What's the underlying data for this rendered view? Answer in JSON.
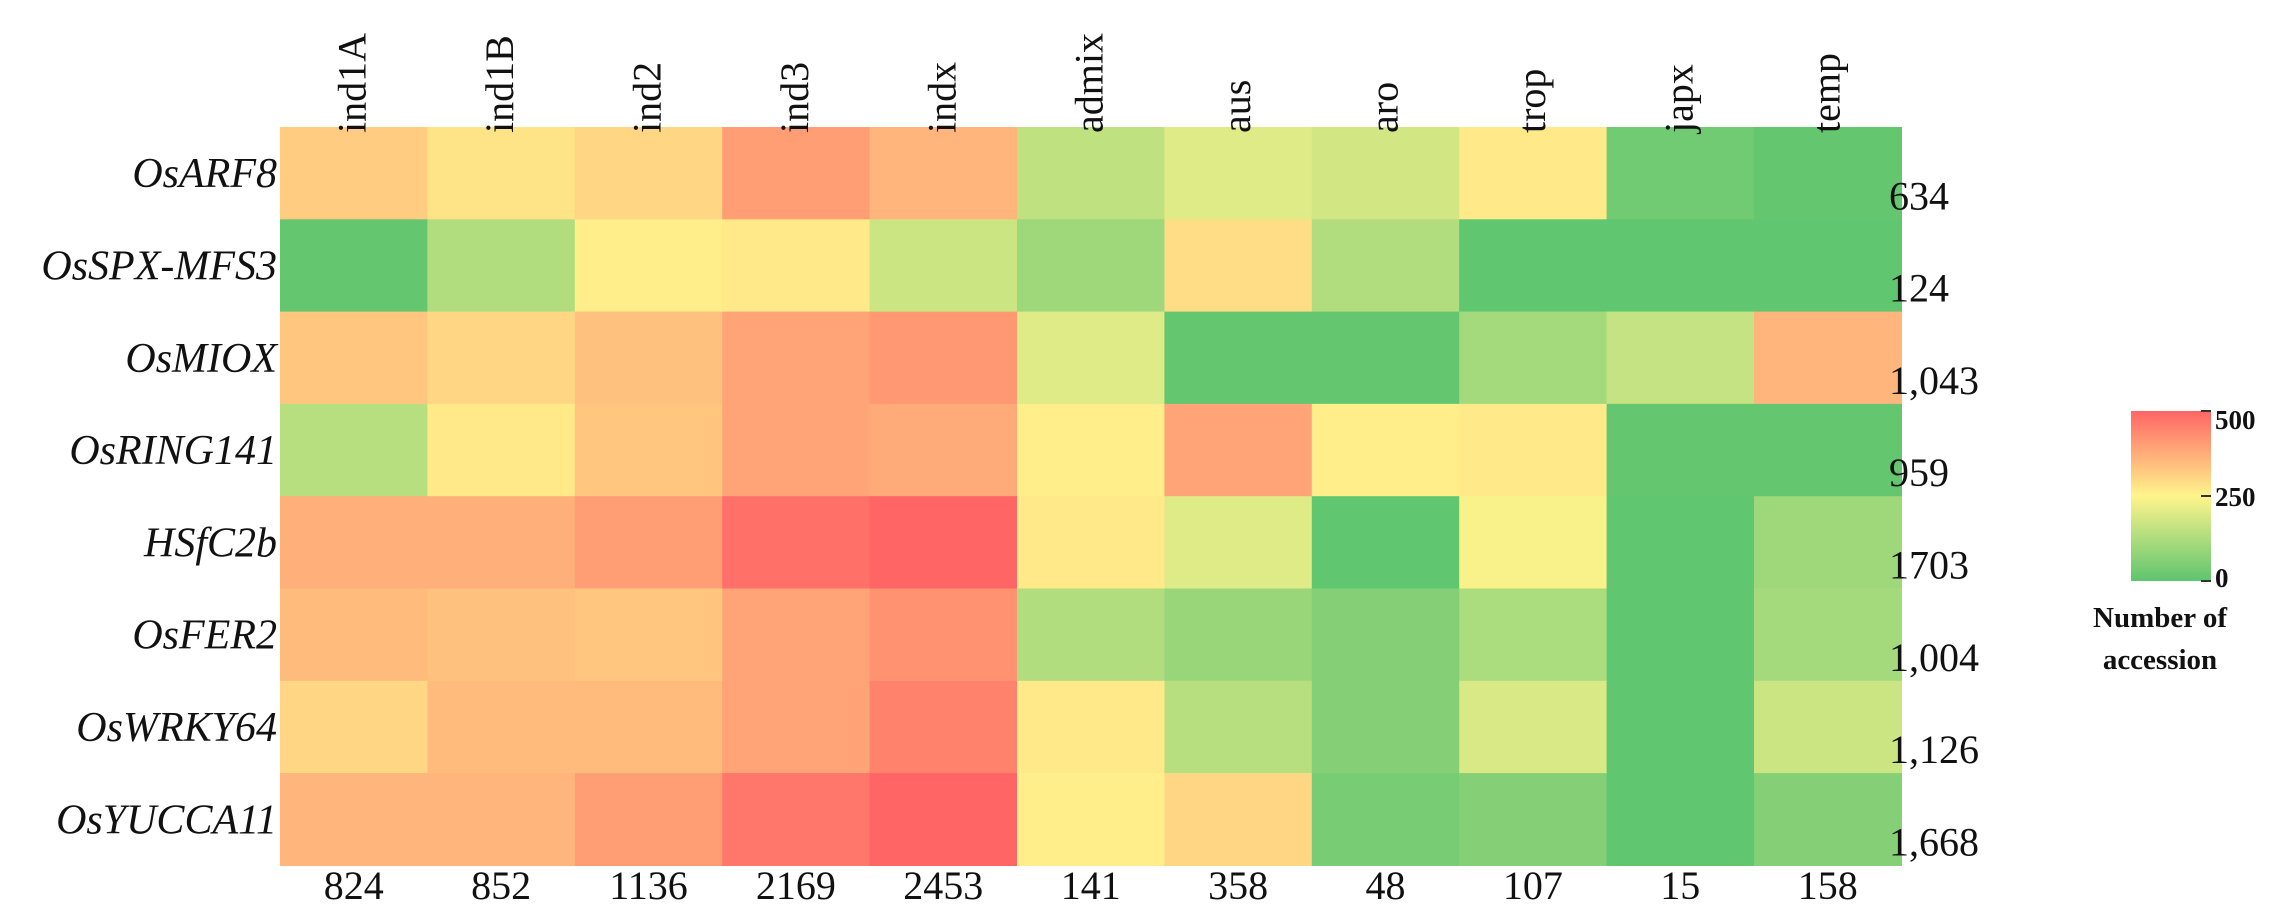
{
  "chart_data": {
    "type": "heatmap",
    "columns": [
      "ind1A",
      "ind1B",
      "ind2",
      "ind3",
      "indx",
      "admix",
      "aus",
      "aro",
      "trop",
      "japx",
      "temp"
    ],
    "rows": [
      "OsARF8",
      "OsSPX-MFS3",
      "OsMIOX",
      "OsRING141",
      "HSfC2b",
      "OsFER2",
      "OsWRKY64",
      "OsYUCCA11"
    ],
    "row_totals": [
      "634",
      "124",
      "1,043",
      "959",
      "1703",
      "1,004",
      "1,126",
      "1,668"
    ],
    "column_totals": [
      "824",
      "852",
      "1136",
      "2169",
      "2453",
      "141",
      "358",
      "48",
      "107",
      "15",
      "158"
    ],
    "values": [
      [
        320,
        280,
        300,
        400,
        360,
        150,
        200,
        180,
        270,
        30,
        10
      ],
      [
        10,
        130,
        260,
        270,
        170,
        100,
        290,
        130,
        5,
        5,
        5
      ],
      [
        330,
        300,
        340,
        390,
        410,
        200,
        10,
        10,
        110,
        160,
        360
      ],
      [
        140,
        270,
        330,
        390,
        380,
        260,
        390,
        260,
        270,
        10,
        10
      ],
      [
        370,
        370,
        400,
        480,
        520,
        270,
        200,
        5,
        240,
        5,
        100
      ],
      [
        350,
        340,
        330,
        390,
        420,
        130,
        90,
        60,
        120,
        5,
        110
      ],
      [
        300,
        350,
        350,
        390,
        450,
        270,
        140,
        60,
        190,
        5,
        170
      ],
      [
        360,
        360,
        400,
        470,
        510,
        260,
        300,
        40,
        60,
        5,
        60
      ]
    ],
    "colorbar": {
      "min": 0,
      "max": 500,
      "ticks": [
        "0",
        "250",
        "500"
      ],
      "label_lines": [
        "Number of",
        "accession"
      ]
    },
    "colors": {
      "low": "#5ec56f",
      "mid": "#fff48c",
      "high": "#ff6565"
    }
  }
}
